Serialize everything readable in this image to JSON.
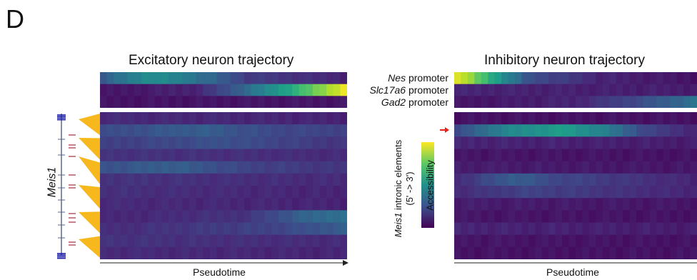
{
  "panel_letter": "D",
  "excitatory": {
    "title": "Excitatory neuron trajectory",
    "xlabel": "Pseudotime"
  },
  "inhibitory": {
    "title": "Inhibitory neuron trajectory",
    "xlabel": "Pseudotime"
  },
  "promoters": [
    {
      "gene": "Nes",
      "suffix": " promoter"
    },
    {
      "gene": "Slc17a6",
      "suffix": " promoter"
    },
    {
      "gene": "Gad2",
      "suffix": " promoter"
    }
  ],
  "gene_label": "Meis1",
  "element_axis": {
    "gene": "Meis1",
    "text": " intronic elements",
    "sub": "(5' -> 3')"
  },
  "colorbar_label": "Accessibility",
  "colors": {
    "viridis": [
      "#440154",
      "#482878",
      "#3e4989",
      "#31688e",
      "#26828e",
      "#1f9e89",
      "#35b779",
      "#6ece58",
      "#b5de2b",
      "#fde725"
    ],
    "arrow": "#e8221a",
    "gene_track": "#1a1aa8",
    "element_tick": "#b04a5a",
    "fan": "#f6b81c"
  },
  "chart_data": [
    {
      "type": "heatmap",
      "title": "Excitatory neuron trajectory",
      "xlabel": "Pseudotime",
      "rows": [
        "Nes promoter",
        "Slc17a6 promoter",
        "Gad2 promoter"
      ],
      "value_range": [
        0,
        1
      ],
      "columns": 36,
      "profiles": [
        {
          "name": "Nes promoter",
          "points": [
            [
              0,
              0.28
            ],
            [
              0.2,
              0.5
            ],
            [
              0.35,
              0.42
            ],
            [
              0.6,
              0.18
            ],
            [
              1,
              0.1
            ]
          ]
        },
        {
          "name": "Slc17a6 promoter",
          "points": [
            [
              0,
              0.05
            ],
            [
              0.4,
              0.1
            ],
            [
              0.6,
              0.35
            ],
            [
              0.8,
              0.65
            ],
            [
              1,
              1
            ]
          ]
        },
        {
          "name": "Gad2 promoter",
          "points": [
            [
              0,
              0.05
            ],
            [
              1,
              0.06
            ]
          ]
        }
      ]
    },
    {
      "type": "heatmap",
      "title": "Inhibitory neuron trajectory",
      "xlabel": "Pseudotime",
      "rows": [
        "Nes promoter",
        "Slc17a6 promoter",
        "Gad2 promoter"
      ],
      "value_range": [
        0,
        1
      ],
      "columns": 36,
      "profiles": [
        {
          "name": "Nes promoter",
          "points": [
            [
              0,
              1
            ],
            [
              0.12,
              0.7
            ],
            [
              0.3,
              0.25
            ],
            [
              0.6,
              0.1
            ],
            [
              1,
              0.05
            ]
          ]
        },
        {
          "name": "Slc17a6 promoter",
          "points": [
            [
              0,
              0.1
            ],
            [
              1,
              0.08
            ]
          ]
        },
        {
          "name": "Gad2 promoter",
          "points": [
            [
              0,
              0.05
            ],
            [
              0.5,
              0.1
            ],
            [
              0.8,
              0.25
            ],
            [
              1,
              0.38
            ]
          ]
        }
      ]
    },
    {
      "type": "heatmap",
      "title": "Excitatory neuron trajectory",
      "xlabel": "Pseudotime",
      "ylabel": "Meis1 intronic elements (5' -> 3')",
      "rows": 12,
      "value_range": [
        0,
        1
      ],
      "columns": 36,
      "profiles": [
        {
          "row": 1,
          "points": [
            [
              0,
              0.12
            ],
            [
              1,
              0.1
            ]
          ]
        },
        {
          "row": 2,
          "points": [
            [
              0,
              0.22
            ],
            [
              0.4,
              0.3
            ],
            [
              0.7,
              0.22
            ],
            [
              1,
              0.2
            ]
          ]
        },
        {
          "row": 3,
          "points": [
            [
              0,
              0.18
            ],
            [
              0.5,
              0.25
            ],
            [
              1,
              0.15
            ]
          ]
        },
        {
          "row": 4,
          "points": [
            [
              0,
              0.15
            ],
            [
              1,
              0.12
            ]
          ]
        },
        {
          "row": 5,
          "points": [
            [
              0,
              0.25
            ],
            [
              0.3,
              0.3
            ],
            [
              0.6,
              0.2
            ],
            [
              1,
              0.15
            ]
          ]
        },
        {
          "row": 6,
          "points": [
            [
              0,
              0.15
            ],
            [
              1,
              0.12
            ]
          ]
        },
        {
          "row": 7,
          "points": [
            [
              0,
              0.14
            ],
            [
              1,
              0.1
            ]
          ]
        },
        {
          "row": 8,
          "points": [
            [
              0,
              0.12
            ],
            [
              1,
              0.1
            ]
          ]
        },
        {
          "row": 9,
          "points": [
            [
              0,
              0.1
            ],
            [
              0.6,
              0.15
            ],
            [
              0.8,
              0.3
            ],
            [
              1,
              0.38
            ]
          ]
        },
        {
          "row": 10,
          "points": [
            [
              0,
              0.12
            ],
            [
              0.7,
              0.2
            ],
            [
              1,
              0.3
            ]
          ]
        },
        {
          "row": 11,
          "points": [
            [
              0,
              0.15
            ],
            [
              1,
              0.12
            ]
          ]
        },
        {
          "row": 12,
          "points": [
            [
              0,
              0.12
            ],
            [
              1,
              0.1
            ]
          ]
        }
      ]
    },
    {
      "type": "heatmap",
      "title": "Inhibitory neuron trajectory",
      "xlabel": "Pseudotime",
      "ylabel": "Meis1 intronic elements (5' -> 3')",
      "rows": 12,
      "value_range": [
        0,
        1
      ],
      "columns": 36,
      "profiles": [
        {
          "row": 1,
          "points": [
            [
              0,
              0.05
            ],
            [
              1,
              0.05
            ]
          ]
        },
        {
          "row": 2,
          "points": [
            [
              0,
              0.2
            ],
            [
              0.2,
              0.45
            ],
            [
              0.45,
              0.55
            ],
            [
              0.6,
              0.45
            ],
            [
              0.8,
              0.2
            ],
            [
              1,
              0.1
            ]
          ]
        },
        {
          "row": 3,
          "points": [
            [
              0,
              0.1
            ],
            [
              1,
              0.08
            ]
          ]
        },
        {
          "row": 4,
          "points": [
            [
              0,
              0.06
            ],
            [
              1,
              0.05
            ]
          ]
        },
        {
          "row": 5,
          "points": [
            [
              0,
              0.08
            ],
            [
              1,
              0.06
            ]
          ]
        },
        {
          "row": 6,
          "points": [
            [
              0,
              0.12
            ],
            [
              0.25,
              0.3
            ],
            [
              0.4,
              0.22
            ],
            [
              1,
              0.1
            ]
          ]
        },
        {
          "row": 7,
          "points": [
            [
              0,
              0.12
            ],
            [
              0.3,
              0.2
            ],
            [
              1,
              0.1
            ]
          ]
        },
        {
          "row": 8,
          "points": [
            [
              0,
              0.08
            ],
            [
              1,
              0.06
            ]
          ]
        },
        {
          "row": 9,
          "points": [
            [
              0,
              0.06
            ],
            [
              1,
              0.05
            ]
          ]
        },
        {
          "row": 10,
          "points": [
            [
              0,
              0.1
            ],
            [
              1,
              0.08
            ]
          ]
        },
        {
          "row": 11,
          "points": [
            [
              0,
              0.06
            ],
            [
              1,
              0.05
            ]
          ]
        },
        {
          "row": 12,
          "points": [
            [
              0,
              0.05
            ],
            [
              1,
              0.05
            ]
          ]
        }
      ]
    }
  ]
}
